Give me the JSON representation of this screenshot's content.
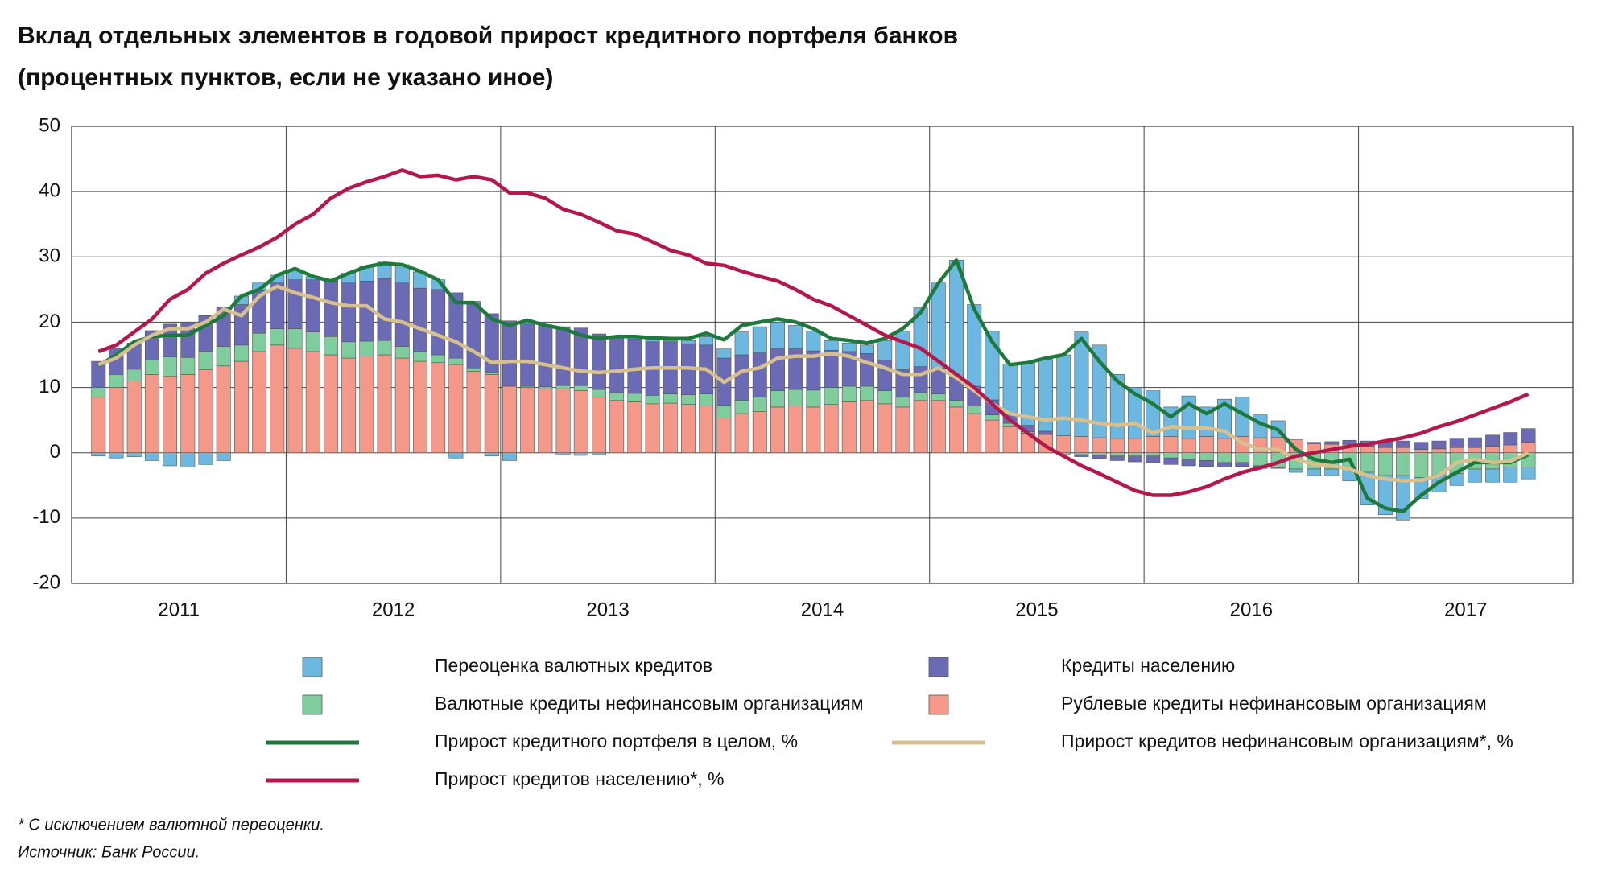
{
  "chart_data": {
    "type": "bar",
    "title": "Вклад отдельных элементов в годовой прирост кредитного портфеля банков",
    "subtitle": "(процентных пунктов, если не указано иное)",
    "categories": [
      null,
      null,
      null,
      null,
      null,
      "2011",
      null,
      null,
      null,
      null,
      null,
      null,
      null,
      null,
      null,
      null,
      null,
      "2012",
      null,
      null,
      null,
      null,
      null,
      null,
      null,
      null,
      null,
      null,
      null,
      "2013",
      null,
      null,
      null,
      null,
      null,
      null,
      null,
      null,
      null,
      null,
      null,
      "2014",
      null,
      null,
      null,
      null,
      null,
      null,
      null,
      null,
      null,
      null,
      null,
      "2015",
      null,
      null,
      null,
      null,
      null,
      null,
      null,
      null,
      null,
      null,
      null,
      "2016",
      null,
      null,
      null,
      null,
      null,
      null,
      null,
      null,
      null,
      null,
      null,
      "2017",
      null,
      null,
      null
    ],
    "ylim": [
      -20,
      50
    ],
    "yticks": [
      -20,
      -10,
      0,
      10,
      20,
      30,
      40,
      50
    ],
    "grid": true,
    "series": [
      {
        "name": "Переоценка валютных кредитов",
        "type": "bar",
        "color": "#6cb8e0",
        "values": [
          -0.5,
          -0.8,
          -0.6,
          -1.2,
          -2,
          -2.2,
          -1.8,
          -1.2,
          1.3,
          1.2,
          1.2,
          1.5,
          0.5,
          0.3,
          1.5,
          2.2,
          2.5,
          2.8,
          2.5,
          1.5,
          -0.8,
          0.2,
          -0.5,
          -1.2,
          0.4,
          0,
          -0.3,
          -0.4,
          -0.3,
          0.2,
          0.2,
          0.4,
          0.2,
          0.5,
          1.3,
          1.5,
          3.5,
          4,
          4,
          3.5,
          3,
          1.5,
          1.3,
          1.3,
          3,
          5.8,
          9,
          13,
          18,
          12.5,
          10.5,
          7.5,
          9.5,
          11,
          12.4,
          16,
          14.2,
          9.8,
          7.8,
          7,
          4.5,
          6.5,
          4.5,
          6,
          6,
          3.5,
          2.5,
          -0.5,
          -1,
          -1,
          -1.5,
          -5,
          -6,
          -6.8,
          -3.2,
          -2.5,
          -1.8,
          -2,
          -2,
          -2.3,
          -1.8
        ]
      },
      {
        "name": "Кредиты населению",
        "type": "bar",
        "color": "#6b6bb5",
        "values": [
          4,
          4,
          4,
          4.5,
          5,
          5.3,
          5.5,
          6,
          6.2,
          6.5,
          7,
          7.5,
          8,
          8.5,
          9,
          9.2,
          9.5,
          9.7,
          9.7,
          10,
          10,
          10,
          9,
          10,
          9.5,
          9.5,
          9,
          8.8,
          8.5,
          8.5,
          8.3,
          8.2,
          8,
          7.8,
          7.5,
          7.2,
          7,
          6.8,
          6.5,
          6.3,
          6,
          5.7,
          5.3,
          5,
          4.7,
          4.3,
          4,
          4,
          3.5,
          3,
          2.3,
          1.6,
          1,
          0.5,
          0,
          -0.3,
          -0.5,
          -0.7,
          -0.9,
          -1,
          -1,
          -1,
          -0.9,
          -0.7,
          -0.6,
          -0.4,
          -0.2,
          0,
          0.2,
          0.4,
          0.6,
          0.8,
          0.9,
          1,
          1.1,
          1.2,
          1.3,
          1.5,
          1.7,
          1.9,
          2.1
        ]
      },
      {
        "name": "Валютные кредиты нефинансовым организациям",
        "type": "bar",
        "color": "#7fcc9c",
        "values": [
          1.5,
          2,
          1.8,
          2.2,
          3,
          2.6,
          2.8,
          3,
          2.5,
          2.8,
          2.5,
          3,
          3,
          2.8,
          2.5,
          2.3,
          2.2,
          1.8,
          1.5,
          1.2,
          1,
          0.5,
          0.3,
          0,
          0.2,
          0.3,
          0.5,
          0.8,
          1.2,
          1.2,
          1.3,
          1.3,
          1.4,
          1.5,
          1.8,
          2,
          2,
          2.2,
          2.5,
          2.5,
          2.6,
          2.6,
          2.4,
          2.2,
          2,
          1.5,
          1.2,
          1,
          1,
          1.2,
          0.8,
          0.5,
          0.2,
          0,
          -0.2,
          -0.3,
          -0.4,
          -0.5,
          -0.5,
          -0.5,
          -0.8,
          -1,
          -1.2,
          -1.5,
          -1.5,
          -2,
          -2.2,
          -2.5,
          -2.5,
          -2.5,
          -2.8,
          -3,
          -3.5,
          -3.5,
          -3.8,
          -3.5,
          -3.2,
          -2.5,
          -2.5,
          -2.2,
          -2.2
        ]
      },
      {
        "name": "Рублевые кредиты нефинансовым организациям",
        "type": "bar",
        "color": "#f4998a",
        "values": [
          8.5,
          10,
          11,
          12,
          11.7,
          12,
          12.7,
          13.3,
          14,
          15.5,
          16.5,
          16,
          15.5,
          15,
          14.5,
          14.8,
          15,
          14.5,
          14,
          13.8,
          13.5,
          12.5,
          12,
          10.2,
          10,
          9.8,
          9.8,
          9.5,
          8.5,
          8,
          7.8,
          7.5,
          7.6,
          7.4,
          7.2,
          5.3,
          6,
          6.3,
          7,
          7.2,
          7,
          7.4,
          7.8,
          8,
          7.5,
          7,
          8,
          8,
          7,
          6,
          5,
          4,
          3,
          2.8,
          2.6,
          2.5,
          2.3,
          2.2,
          2.2,
          2.5,
          2.5,
          2.2,
          2.5,
          2.2,
          2.5,
          2.3,
          2.4,
          2,
          1.4,
          1.3,
          1.3,
          1,
          0.8,
          0.8,
          0.5,
          0.6,
          0.8,
          0.8,
          1,
          1.2,
          1.6
        ]
      },
      {
        "name": "Прирост кредитного портфеля в целом, %",
        "type": "line",
        "color": "#1e7a3c",
        "values": [
          13.3,
          15,
          17,
          17.8,
          18,
          18,
          19.5,
          21,
          24,
          25,
          27.2,
          28.2,
          27,
          26.3,
          27.5,
          28.5,
          29,
          28.8,
          27.8,
          26.5,
          23,
          23,
          20.5,
          19.5,
          20.3,
          19.5,
          19,
          18,
          17.5,
          17.8,
          17.8,
          17.6,
          17.5,
          17.5,
          18.3,
          17.3,
          19.5,
          20,
          20.5,
          20,
          19,
          17.5,
          17.2,
          16.8,
          17.5,
          19,
          21.5,
          26,
          29.5,
          22,
          17,
          13.5,
          13.8,
          14.5,
          15,
          17.5,
          14,
          11,
          9,
          7.5,
          5.5,
          7.5,
          6,
          7.5,
          6,
          4.5,
          3.5,
          0.5,
          -1,
          -1.5,
          -1,
          -7,
          -8.5,
          -9,
          -6.5,
          -4.5,
          -3,
          -1.5,
          -1.5,
          -1.5,
          -0.3
        ]
      },
      {
        "name": "Прирост кредитов нефинансовым организациям*, %",
        "type": "line",
        "color": "#d8c08c",
        "values": [
          13.5,
          14.5,
          16.5,
          18,
          19,
          19,
          20,
          22,
          21,
          24,
          25.5,
          24.5,
          23.8,
          23,
          22.5,
          22.5,
          20.5,
          20,
          19,
          18,
          17,
          15.5,
          13.8,
          14,
          14,
          13.5,
          13,
          12.5,
          12.3,
          12.5,
          12.8,
          13,
          13,
          13,
          12.8,
          10.8,
          12.5,
          13,
          14.5,
          14.8,
          14.8,
          15.2,
          14.8,
          13.8,
          13,
          12,
          12,
          13,
          11.5,
          9.5,
          7.5,
          6,
          5.5,
          5,
          5.3,
          5,
          4.5,
          4.2,
          4.5,
          3,
          4,
          3.8,
          3.8,
          3.3,
          1.5,
          0.5,
          0.5,
          -1,
          -1.8,
          -2,
          -2.5,
          -3.5,
          -4,
          -4.3,
          -4.2,
          -3.5,
          -1.5,
          -1,
          -1.5,
          -1.3,
          0
        ]
      },
      {
        "name": "Прирост кредитов населению*, %",
        "type": "line",
        "color": "#b5174b",
        "values": [
          15.5,
          16.5,
          18.5,
          20.5,
          23.5,
          25,
          27.5,
          29,
          30.3,
          31.5,
          33,
          35,
          36.5,
          39,
          40.5,
          41.5,
          42.3,
          43.3,
          42.3,
          42.5,
          41.8,
          42.3,
          41.8,
          39.8,
          39.8,
          39,
          37.3,
          36.5,
          35.3,
          34,
          33.5,
          32.3,
          31,
          30.3,
          29,
          28.7,
          27.8,
          27,
          26.3,
          25,
          23.5,
          22.5,
          21,
          19.5,
          18,
          17,
          16,
          14,
          12,
          10,
          7.5,
          5,
          3,
          1,
          -0.5,
          -2,
          -3.2,
          -4.5,
          -5.8,
          -6.5,
          -6.5,
          -6,
          -5.2,
          -4,
          -3,
          -2.3,
          -1.5,
          -0.5,
          0,
          0.5,
          1,
          1.3,
          1.8,
          2.3,
          3,
          4,
          4.8,
          5.8,
          6.8,
          7.8,
          9
        ]
      }
    ],
    "notes": [
      "* С исключением валютной переоценки.",
      "Источник: Банк России."
    ]
  }
}
